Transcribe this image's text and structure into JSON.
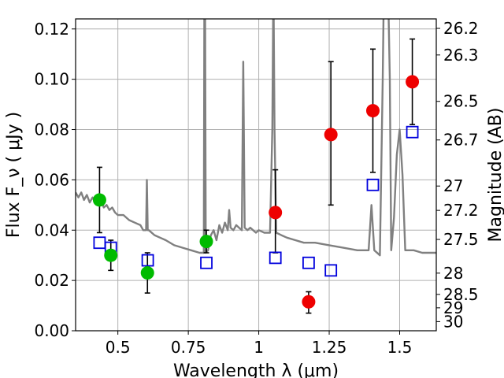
{
  "chart_data": {
    "type": "scatter",
    "xlabel": "Wavelength  λ (μm)",
    "ylabel": "Flux  F_ν  ( μJy )",
    "ylabel_right": "Magnitude (AB)",
    "xlim": [
      0.35,
      1.63
    ],
    "ylim": [
      0.0,
      0.124
    ],
    "grid": true,
    "x_ticks": [
      0.5,
      0.75,
      1.0,
      1.25,
      1.5
    ],
    "x_tick_labels": [
      "0.5",
      "0.75",
      "1",
      "1.25",
      "1.5"
    ],
    "y_ticks": [
      0.0,
      0.02,
      0.04,
      0.06,
      0.08,
      0.1,
      0.12
    ],
    "y_tick_labels": [
      "0.00",
      "0.02",
      "0.04",
      "0.06",
      "0.08",
      "0.10",
      "0.12"
    ],
    "right_ticks": [
      {
        "mag": 26.2,
        "label": "26.2"
      },
      {
        "mag": 26.3,
        "label": "26.3"
      },
      {
        "mag": 26.5,
        "label": "26.5"
      },
      {
        "mag": 26.7,
        "label": "26.7"
      },
      {
        "mag": 27.0,
        "label": "27"
      },
      {
        "mag": 27.2,
        "label": "27.2"
      },
      {
        "mag": 27.5,
        "label": "27.5"
      },
      {
        "mag": 28.0,
        "label": "28"
      },
      {
        "mag": 28.5,
        "label": "28.5"
      },
      {
        "mag": 29.0,
        "label": "29"
      },
      {
        "mag": 30.0,
        "label": "30"
      }
    ],
    "colors": {
      "green": "#00bb00",
      "red": "#ee0000",
      "square": "#0000dd",
      "model": "#808080",
      "errorbar": "#000000",
      "grid": "#b0b0b0"
    },
    "series": [
      {
        "marker": "circle-green",
        "points": [
          {
            "x": 0.435,
            "y": 0.052,
            "lo": 0.039,
            "hi": 0.065
          },
          {
            "x": 0.475,
            "y": 0.03,
            "lo": 0.024,
            "hi": 0.036
          },
          {
            "x": 0.605,
            "y": 0.023,
            "lo": 0.015,
            "hi": 0.031
          },
          {
            "x": 0.814,
            "y": 0.0355,
            "lo": 0.031,
            "hi": 0.04
          }
        ]
      },
      {
        "marker": "circle-red",
        "points": [
          {
            "x": 1.059,
            "y": 0.047,
            "lo": 0.031,
            "hi": 0.064
          },
          {
            "x": 1.177,
            "y": 0.0115,
            "lo": 0.007,
            "hi": 0.0155
          },
          {
            "x": 1.256,
            "y": 0.078,
            "lo": 0.05,
            "hi": 0.107
          },
          {
            "x": 1.405,
            "y": 0.0875,
            "lo": 0.063,
            "hi": 0.112
          },
          {
            "x": 1.545,
            "y": 0.099,
            "lo": 0.082,
            "hi": 0.116
          }
        ]
      },
      {
        "marker": "square-blue",
        "points": [
          {
            "x": 0.435,
            "y": 0.035
          },
          {
            "x": 0.475,
            "y": 0.033
          },
          {
            "x": 0.606,
            "y": 0.028
          },
          {
            "x": 0.814,
            "y": 0.027
          },
          {
            "x": 1.059,
            "y": 0.029
          },
          {
            "x": 1.177,
            "y": 0.027
          },
          {
            "x": 1.256,
            "y": 0.024
          },
          {
            "x": 1.405,
            "y": 0.058
          },
          {
            "x": 1.545,
            "y": 0.079
          }
        ]
      },
      {
        "marker": "line-model",
        "points": [
          [
            0.35,
            0.055
          ],
          [
            0.36,
            0.053
          ],
          [
            0.37,
            0.055
          ],
          [
            0.38,
            0.052
          ],
          [
            0.39,
            0.054
          ],
          [
            0.4,
            0.051
          ],
          [
            0.41,
            0.053
          ],
          [
            0.42,
            0.051
          ],
          [
            0.43,
            0.05
          ],
          [
            0.44,
            0.052
          ],
          [
            0.45,
            0.049
          ],
          [
            0.46,
            0.05
          ],
          [
            0.47,
            0.048
          ],
          [
            0.48,
            0.049
          ],
          [
            0.49,
            0.047
          ],
          [
            0.5,
            0.046
          ],
          [
            0.52,
            0.046
          ],
          [
            0.54,
            0.044
          ],
          [
            0.56,
            0.043
          ],
          [
            0.58,
            0.042
          ],
          [
            0.59,
            0.04
          ],
          [
            0.6,
            0.04
          ],
          [
            0.603,
            0.06
          ],
          [
            0.606,
            0.04
          ],
          [
            0.61,
            0.04
          ],
          [
            0.63,
            0.038
          ],
          [
            0.65,
            0.037
          ],
          [
            0.67,
            0.036
          ],
          [
            0.7,
            0.034
          ],
          [
            0.73,
            0.033
          ],
          [
            0.76,
            0.032
          ],
          [
            0.79,
            0.031
          ],
          [
            0.805,
            0.031
          ],
          [
            0.808,
            0.19
          ],
          [
            0.812,
            0.031
          ],
          [
            0.82,
            0.032
          ],
          [
            0.83,
            0.038
          ],
          [
            0.84,
            0.04
          ],
          [
            0.85,
            0.036
          ],
          [
            0.86,
            0.042
          ],
          [
            0.87,
            0.039
          ],
          [
            0.88,
            0.043
          ],
          [
            0.89,
            0.04
          ],
          [
            0.895,
            0.048
          ],
          [
            0.9,
            0.041
          ],
          [
            0.91,
            0.04
          ],
          [
            0.92,
            0.042
          ],
          [
            0.93,
            0.041
          ],
          [
            0.94,
            0.04
          ],
          [
            0.945,
            0.107
          ],
          [
            0.95,
            0.041
          ],
          [
            0.96,
            0.04
          ],
          [
            0.97,
            0.041
          ],
          [
            0.98,
            0.04
          ],
          [
            0.99,
            0.039
          ],
          [
            1.0,
            0.04
          ],
          [
            1.02,
            0.039
          ],
          [
            1.04,
            0.039
          ],
          [
            1.048,
            0.08
          ],
          [
            1.052,
            0.14
          ],
          [
            1.056,
            0.08
          ],
          [
            1.062,
            0.039
          ],
          [
            1.08,
            0.038
          ],
          [
            1.1,
            0.037
          ],
          [
            1.13,
            0.036
          ],
          [
            1.16,
            0.035
          ],
          [
            1.2,
            0.035
          ],
          [
            1.25,
            0.034
          ],
          [
            1.3,
            0.033
          ],
          [
            1.35,
            0.032
          ],
          [
            1.39,
            0.032
          ],
          [
            1.4,
            0.05
          ],
          [
            1.41,
            0.032
          ],
          [
            1.43,
            0.03
          ],
          [
            1.44,
            0.1
          ],
          [
            1.45,
            0.19
          ],
          [
            1.465,
            0.1
          ],
          [
            1.47,
            0.032
          ],
          [
            1.48,
            0.045
          ],
          [
            1.49,
            0.07
          ],
          [
            1.5,
            0.08
          ],
          [
            1.51,
            0.062
          ],
          [
            1.52,
            0.032
          ],
          [
            1.55,
            0.032
          ],
          [
            1.58,
            0.031
          ],
          [
            1.63,
            0.031
          ]
        ]
      }
    ]
  }
}
